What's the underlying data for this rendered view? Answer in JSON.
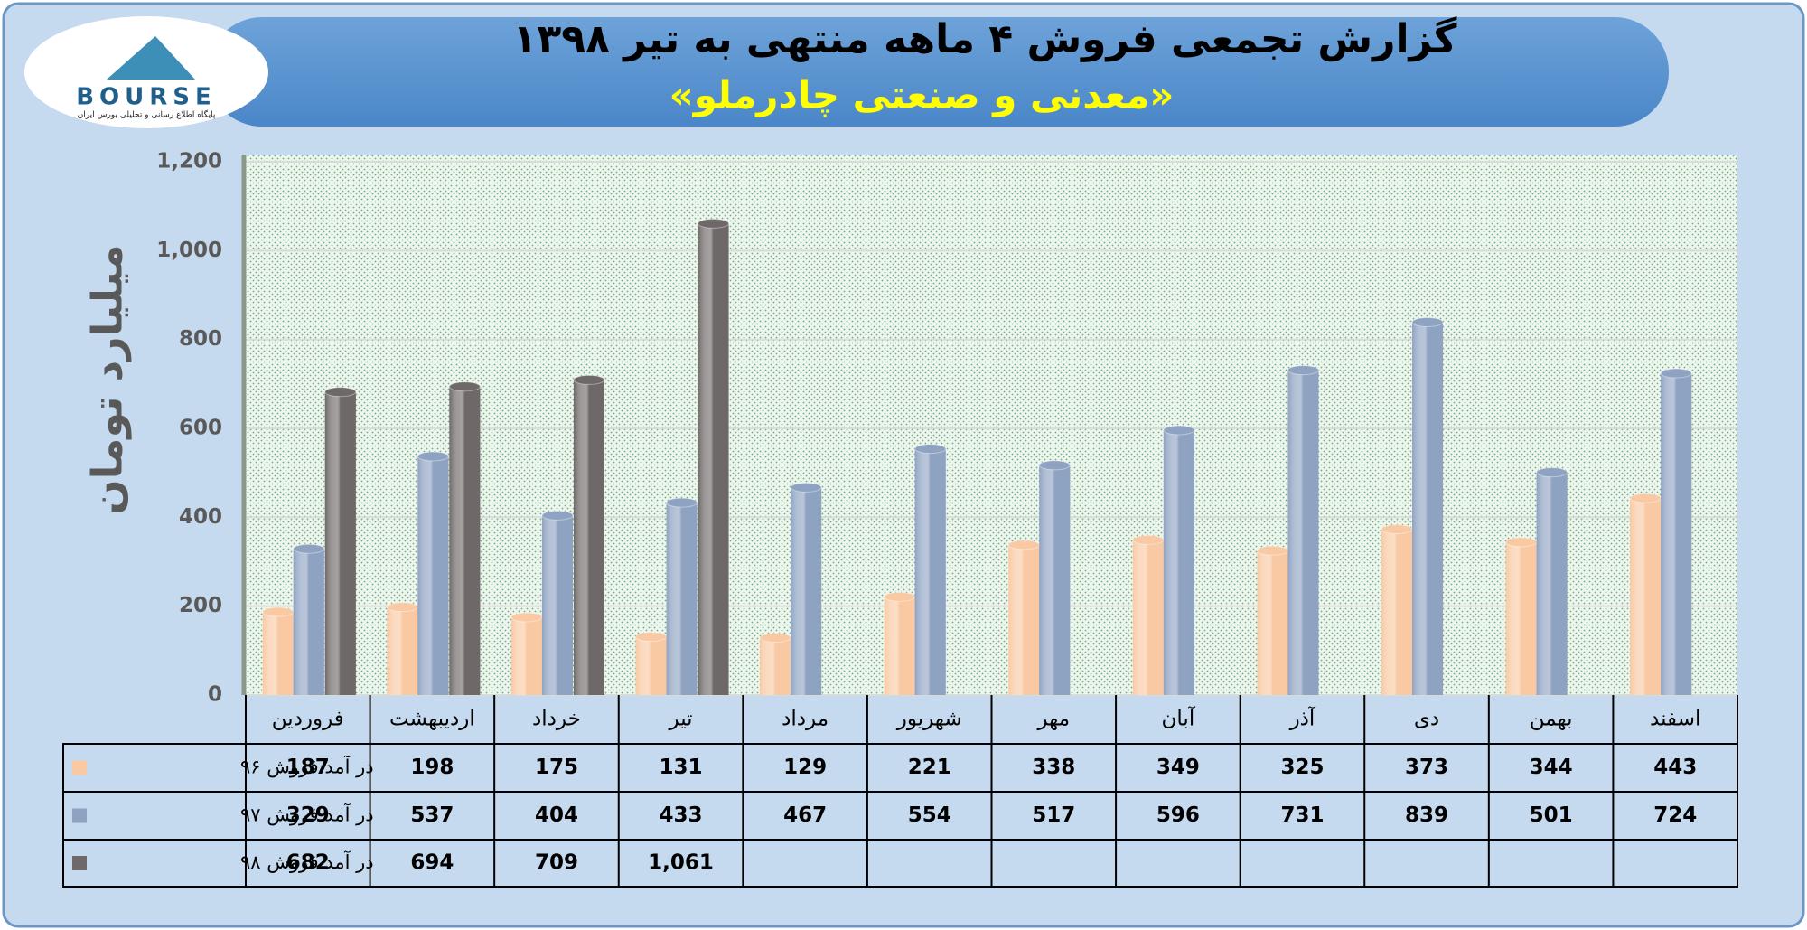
{
  "logo": {
    "text": "BOURSE",
    "caption": "پایگاه اطلاع رسانی و تحلیلی بورس ایران"
  },
  "chart_data": {
    "type": "bar",
    "title": "گزارش تجمعی فروش ۴ ماهه منتهی به تیر ۱۳۹۸",
    "subtitle": "«معدنی و صنعتی چادرملو»",
    "y_label": "میلیارد تومان",
    "categories": [
      "فروردین",
      "اردیبهشت",
      "خرداد",
      "تیر",
      "مرداد",
      "شهریور",
      "مهر",
      "آبان",
      "آذر",
      "دی",
      "بهمن",
      "اسفند"
    ],
    "series": [
      {
        "name": "در آمد فروش ۹۶",
        "color": "#f9c9a3",
        "values": [
          187,
          198,
          175,
          131,
          129,
          221,
          338,
          349,
          325,
          373,
          344,
          443
        ]
      },
      {
        "name": "در آمد فروش ۹۷",
        "color": "#8ea2c2",
        "values": [
          329,
          537,
          404,
          433,
          467,
          554,
          517,
          596,
          731,
          839,
          501,
          724
        ]
      },
      {
        "name": "در آمد فروش ۹۸",
        "color": "#6e6868",
        "values": [
          682,
          694,
          709,
          1061,
          null,
          null,
          null,
          null,
          null,
          null,
          null,
          null
        ],
        "value_labels": [
          "682",
          "694",
          "709",
          "1,061",
          null,
          null,
          null,
          null,
          null,
          null,
          null,
          null
        ]
      }
    ],
    "ylim": [
      0,
      1200
    ],
    "yticks": [
      0,
      200,
      400,
      600,
      800,
      {
        "value": 1000,
        "label": "1,000"
      },
      {
        "value": 1200,
        "label": "1,200"
      }
    ],
    "grid": true
  }
}
